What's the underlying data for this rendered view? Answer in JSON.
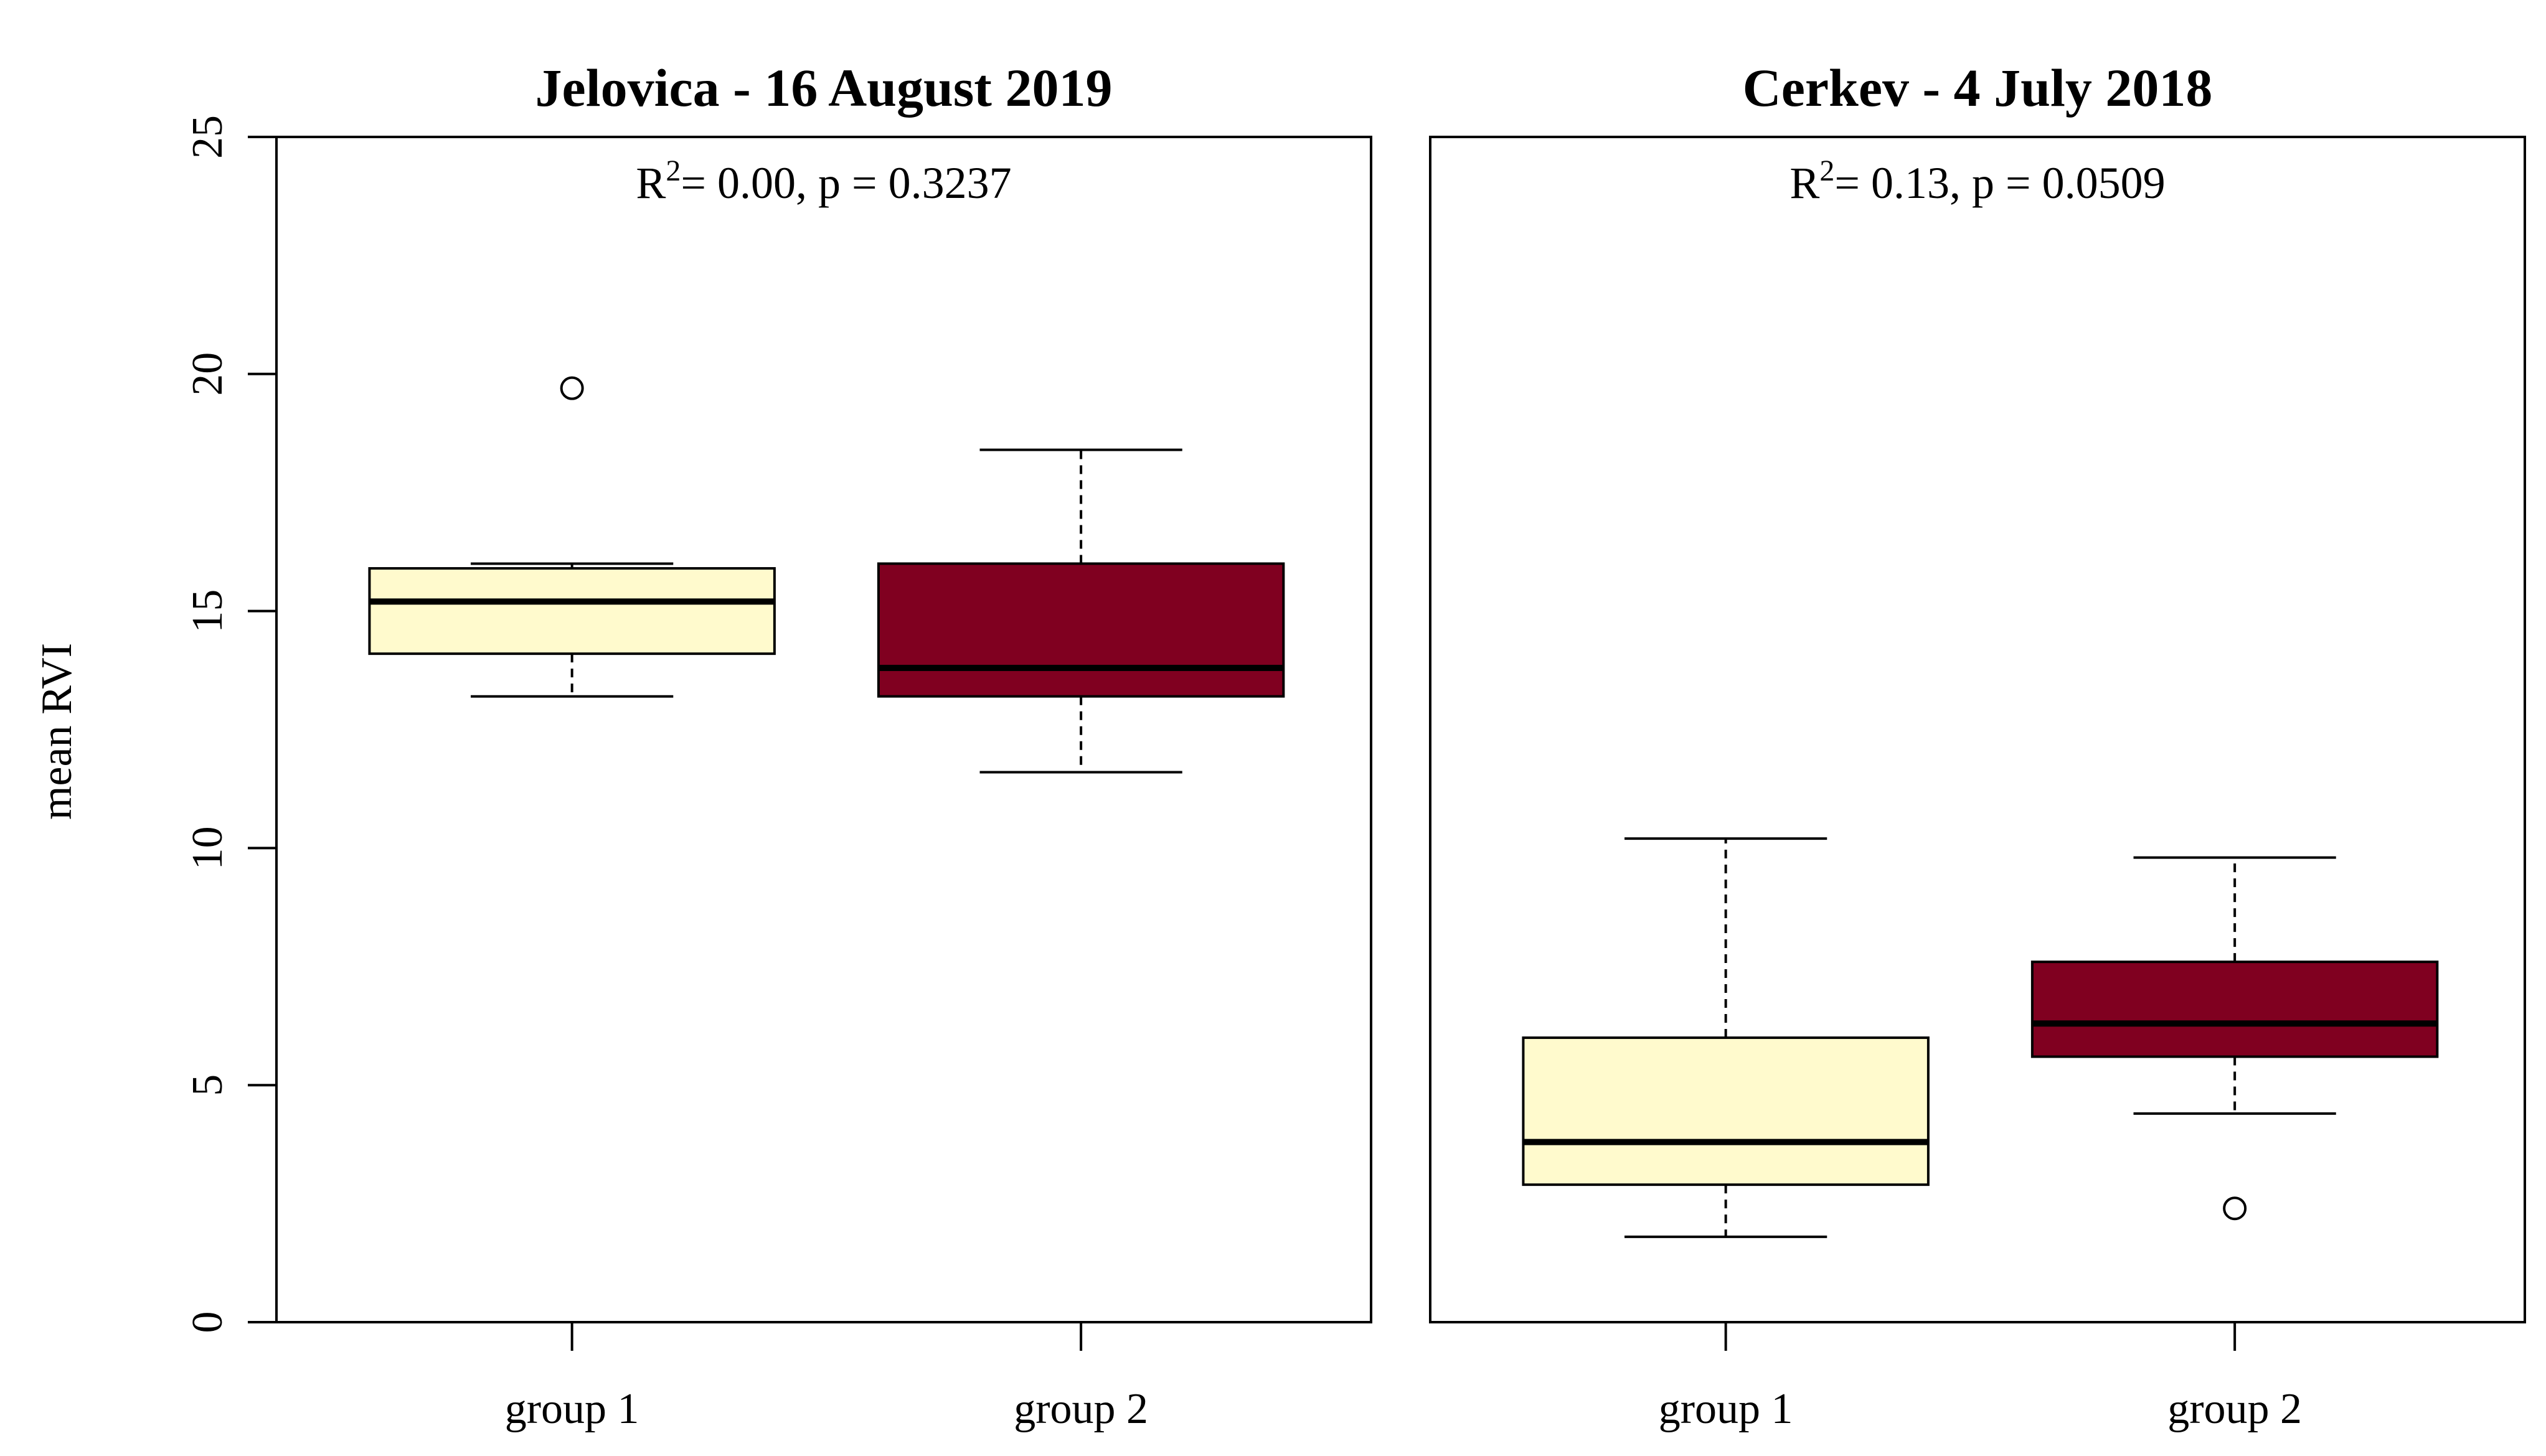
{
  "chart_data": {
    "type": "boxplot",
    "ylabel": "mean RVI",
    "ylim": [
      0,
      25
    ],
    "yticks": [
      "0",
      "5",
      "10",
      "15",
      "20",
      "25"
    ],
    "colors": {
      "group 1": "#FFFACD",
      "group 2": "#800020",
      "stroke": "#000000"
    },
    "panels": [
      {
        "title": "Jelovica - 16 August 2019",
        "annotation": {
          "r_label": "R",
          "sup": "2",
          "rest": "= 0.00, p = 0.3237"
        },
        "categories": [
          "group 1",
          "group 2"
        ],
        "boxes": [
          {
            "name": "group 1",
            "whisker_low": 13.2,
            "q1": 14.1,
            "median": 15.2,
            "q3": 15.9,
            "whisker_high": 16.0,
            "outliers": [
              19.7
            ]
          },
          {
            "name": "group 2",
            "whisker_low": 11.6,
            "q1": 13.2,
            "median": 13.8,
            "q3": 16.0,
            "whisker_high": 18.4,
            "outliers": []
          }
        ]
      },
      {
        "title": "Cerkev - 4 July 2018",
        "annotation": {
          "r_label": "R",
          "sup": "2",
          "rest": "= 0.13, p = 0.0509"
        },
        "categories": [
          "group 1",
          "group 2"
        ],
        "boxes": [
          {
            "name": "group 1",
            "whisker_low": 1.8,
            "q1": 2.9,
            "median": 3.8,
            "q3": 6.0,
            "whisker_high": 10.2,
            "outliers": []
          },
          {
            "name": "group 2",
            "whisker_low": 4.4,
            "q1": 5.6,
            "median": 6.3,
            "q3": 7.6,
            "whisker_high": 9.8,
            "outliers": [
              2.4
            ]
          }
        ]
      }
    ]
  }
}
